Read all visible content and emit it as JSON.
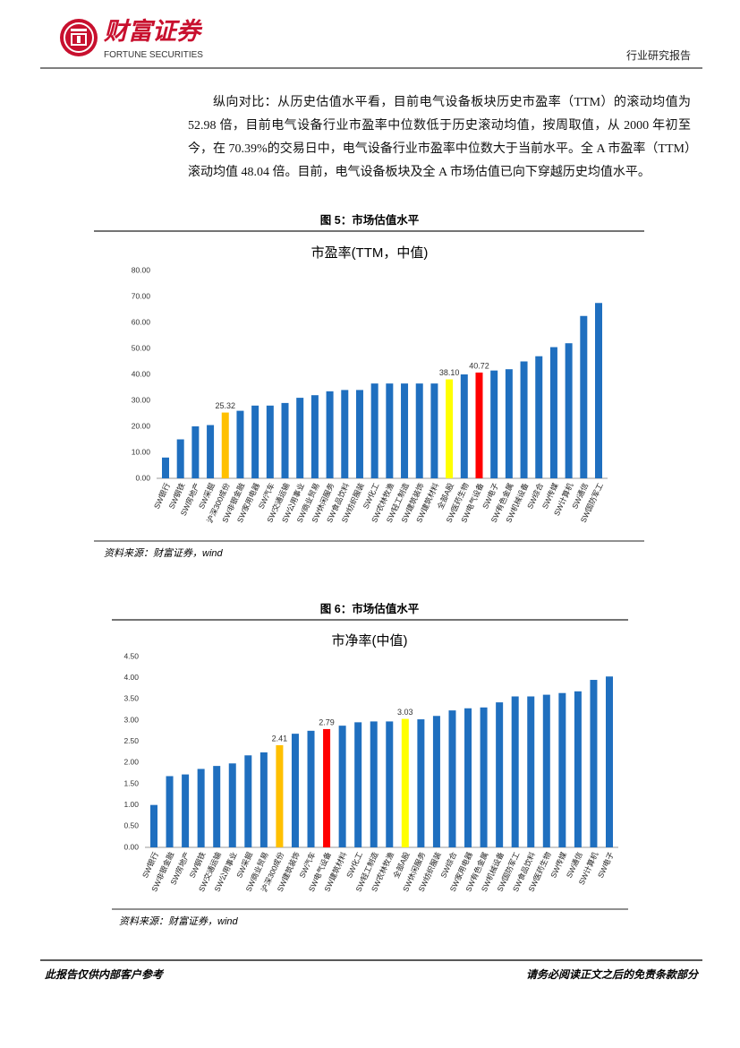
{
  "header": {
    "company": "财富证券",
    "company_en": "FORTUNE SECURITIES",
    "report_type": "行业研究报告"
  },
  "body": {
    "paragraph": "纵向对比：从历史估值水平看，目前电气设备板块历史市盈率（TTM）的滚动均值为 52.98 倍，目前电气设备行业市盈率中位数低于历史滚动均值，按周取值，从 2000 年初至今，在 70.39%的交易日中，电气设备行业市盈率中位数大于当前水平。全 A 市盈率（TTM）滚动均值 48.04 倍。目前，电气设备板块及全 A 市场估值已向下穿越历史均值水平。"
  },
  "figures": [
    {
      "title": "图 5：市场估值水平",
      "source": "资料来源：财富证券，wind"
    },
    {
      "title": "图 6：市场估值水平",
      "source": "资料来源：财富证券，wind"
    }
  ],
  "chart_data": [
    {
      "type": "bar",
      "title": "市盈率(TTM，中值)",
      "categories": [
        "SW银行",
        "SW钢铁",
        "SW房地产",
        "SW采掘",
        "沪深300成份",
        "SW非银金融",
        "SW家用电器",
        "SW汽车",
        "SW交通运输",
        "SW公用事业",
        "SW商业贸易",
        "SW休闲服务",
        "SW食品饮料",
        "SW纺织服装",
        "SW化工",
        "SW农林牧渔",
        "SW轻工制造",
        "SW建筑装饰",
        "SW建筑材料",
        "全部A股",
        "SW医药生物",
        "SW电气设备",
        "SW电子",
        "SW有色金属",
        "SW机械设备",
        "SW综合",
        "SW传媒",
        "SW计算机",
        "SW通信",
        "SW国防军工"
      ],
      "values": [
        8,
        15,
        20,
        20.5,
        25.32,
        26,
        28,
        28,
        29,
        31,
        32,
        33.5,
        34,
        34,
        36.5,
        36.5,
        36.5,
        36.5,
        36.5,
        38.1,
        40,
        40.72,
        41.5,
        42,
        45,
        47,
        50.5,
        52,
        62.5,
        67.5
      ],
      "value_labels": [
        null,
        null,
        null,
        null,
        "25.32",
        null,
        null,
        null,
        null,
        null,
        null,
        null,
        null,
        null,
        null,
        null,
        null,
        null,
        null,
        "38.10",
        null,
        "40.72",
        null,
        null,
        null,
        null,
        null,
        null,
        null,
        null
      ],
      "colors": [
        "#1f6fbf",
        "#1f6fbf",
        "#1f6fbf",
        "#1f6fbf",
        "#ffc000",
        "#1f6fbf",
        "#1f6fbf",
        "#1f6fbf",
        "#1f6fbf",
        "#1f6fbf",
        "#1f6fbf",
        "#1f6fbf",
        "#1f6fbf",
        "#1f6fbf",
        "#1f6fbf",
        "#1f6fbf",
        "#1f6fbf",
        "#1f6fbf",
        "#1f6fbf",
        "#ffff00",
        "#1f6fbf",
        "#ff0000",
        "#1f6fbf",
        "#1f6fbf",
        "#1f6fbf",
        "#1f6fbf",
        "#1f6fbf",
        "#1f6fbf",
        "#1f6fbf",
        "#1f6fbf"
      ],
      "ylim": [
        0,
        80
      ],
      "yticks": [
        {
          "value": 0,
          "label": "0.00"
        },
        {
          "value": 10,
          "label": "10.00"
        },
        {
          "value": 20,
          "label": "20.00"
        },
        {
          "value": 30,
          "label": "30.00"
        },
        {
          "value": 40,
          "label": "40.00"
        },
        {
          "value": 50,
          "label": "50.00"
        },
        {
          "value": 60,
          "label": "60.00"
        },
        {
          "value": 70,
          "label": "70.00"
        },
        {
          "value": 80,
          "label": "80.00"
        }
      ],
      "grid": false
    },
    {
      "type": "bar",
      "title": "市净率(中值)",
      "categories": [
        "SW银行",
        "SW非银金融",
        "SW房地产",
        "SW钢铁",
        "SW交通运输",
        "SW公用事业",
        "SW采掘",
        "SW商业贸易",
        "沪深300成份",
        "SW建筑装饰",
        "SW汽车",
        "SW电气设备",
        "SW建筑材料",
        "SW化工",
        "SW轻工制造",
        "SW农林牧渔",
        "全部A股",
        "SW休闲服务",
        "SW纺织服装",
        "SW综合",
        "SW家用电器",
        "SW有色金属",
        "SW机械设备",
        "SW国防军工",
        "SW食品饮料",
        "SW医药生物",
        "SW传媒",
        "SW通信",
        "SW计算机",
        "SW电子"
      ],
      "values": [
        1.0,
        1.68,
        1.72,
        1.85,
        1.92,
        1.98,
        2.17,
        2.24,
        2.41,
        2.68,
        2.75,
        2.79,
        2.87,
        2.95,
        2.97,
        2.97,
        3.03,
        3.02,
        3.1,
        3.23,
        3.28,
        3.3,
        3.42,
        3.56,
        3.56,
        3.6,
        3.64,
        3.68,
        3.95,
        4.03
      ],
      "value_labels": [
        null,
        null,
        null,
        null,
        null,
        null,
        null,
        null,
        "2.41",
        null,
        null,
        "2.79",
        null,
        null,
        null,
        null,
        "3.03",
        null,
        null,
        null,
        null,
        null,
        null,
        null,
        null,
        null,
        null,
        null,
        null,
        null
      ],
      "colors": [
        "#1f6fbf",
        "#1f6fbf",
        "#1f6fbf",
        "#1f6fbf",
        "#1f6fbf",
        "#1f6fbf",
        "#1f6fbf",
        "#1f6fbf",
        "#ffc000",
        "#1f6fbf",
        "#1f6fbf",
        "#ff0000",
        "#1f6fbf",
        "#1f6fbf",
        "#1f6fbf",
        "#1f6fbf",
        "#ffff00",
        "#1f6fbf",
        "#1f6fbf",
        "#1f6fbf",
        "#1f6fbf",
        "#1f6fbf",
        "#1f6fbf",
        "#1f6fbf",
        "#1f6fbf",
        "#1f6fbf",
        "#1f6fbf",
        "#1f6fbf",
        "#1f6fbf",
        "#1f6fbf"
      ],
      "ylim": [
        0,
        4.5
      ],
      "yticks": [
        {
          "value": 0,
          "label": "0.00"
        },
        {
          "value": 0.5,
          "label": "0.50"
        },
        {
          "value": 1,
          "label": "1.00"
        },
        {
          "value": 1.5,
          "label": "1.50"
        },
        {
          "value": 2,
          "label": "2.00"
        },
        {
          "value": 2.5,
          "label": "2.50"
        },
        {
          "value": 3,
          "label": "3.00"
        },
        {
          "value": 3.5,
          "label": "3.50"
        },
        {
          "value": 4,
          "label": "4.00"
        },
        {
          "value": 4.5,
          "label": "4.50"
        }
      ],
      "grid": false
    }
  ],
  "footer": {
    "left": "此报告仅供内部客户参考",
    "right": "请务必阅读正文之后的免责条款部分"
  }
}
